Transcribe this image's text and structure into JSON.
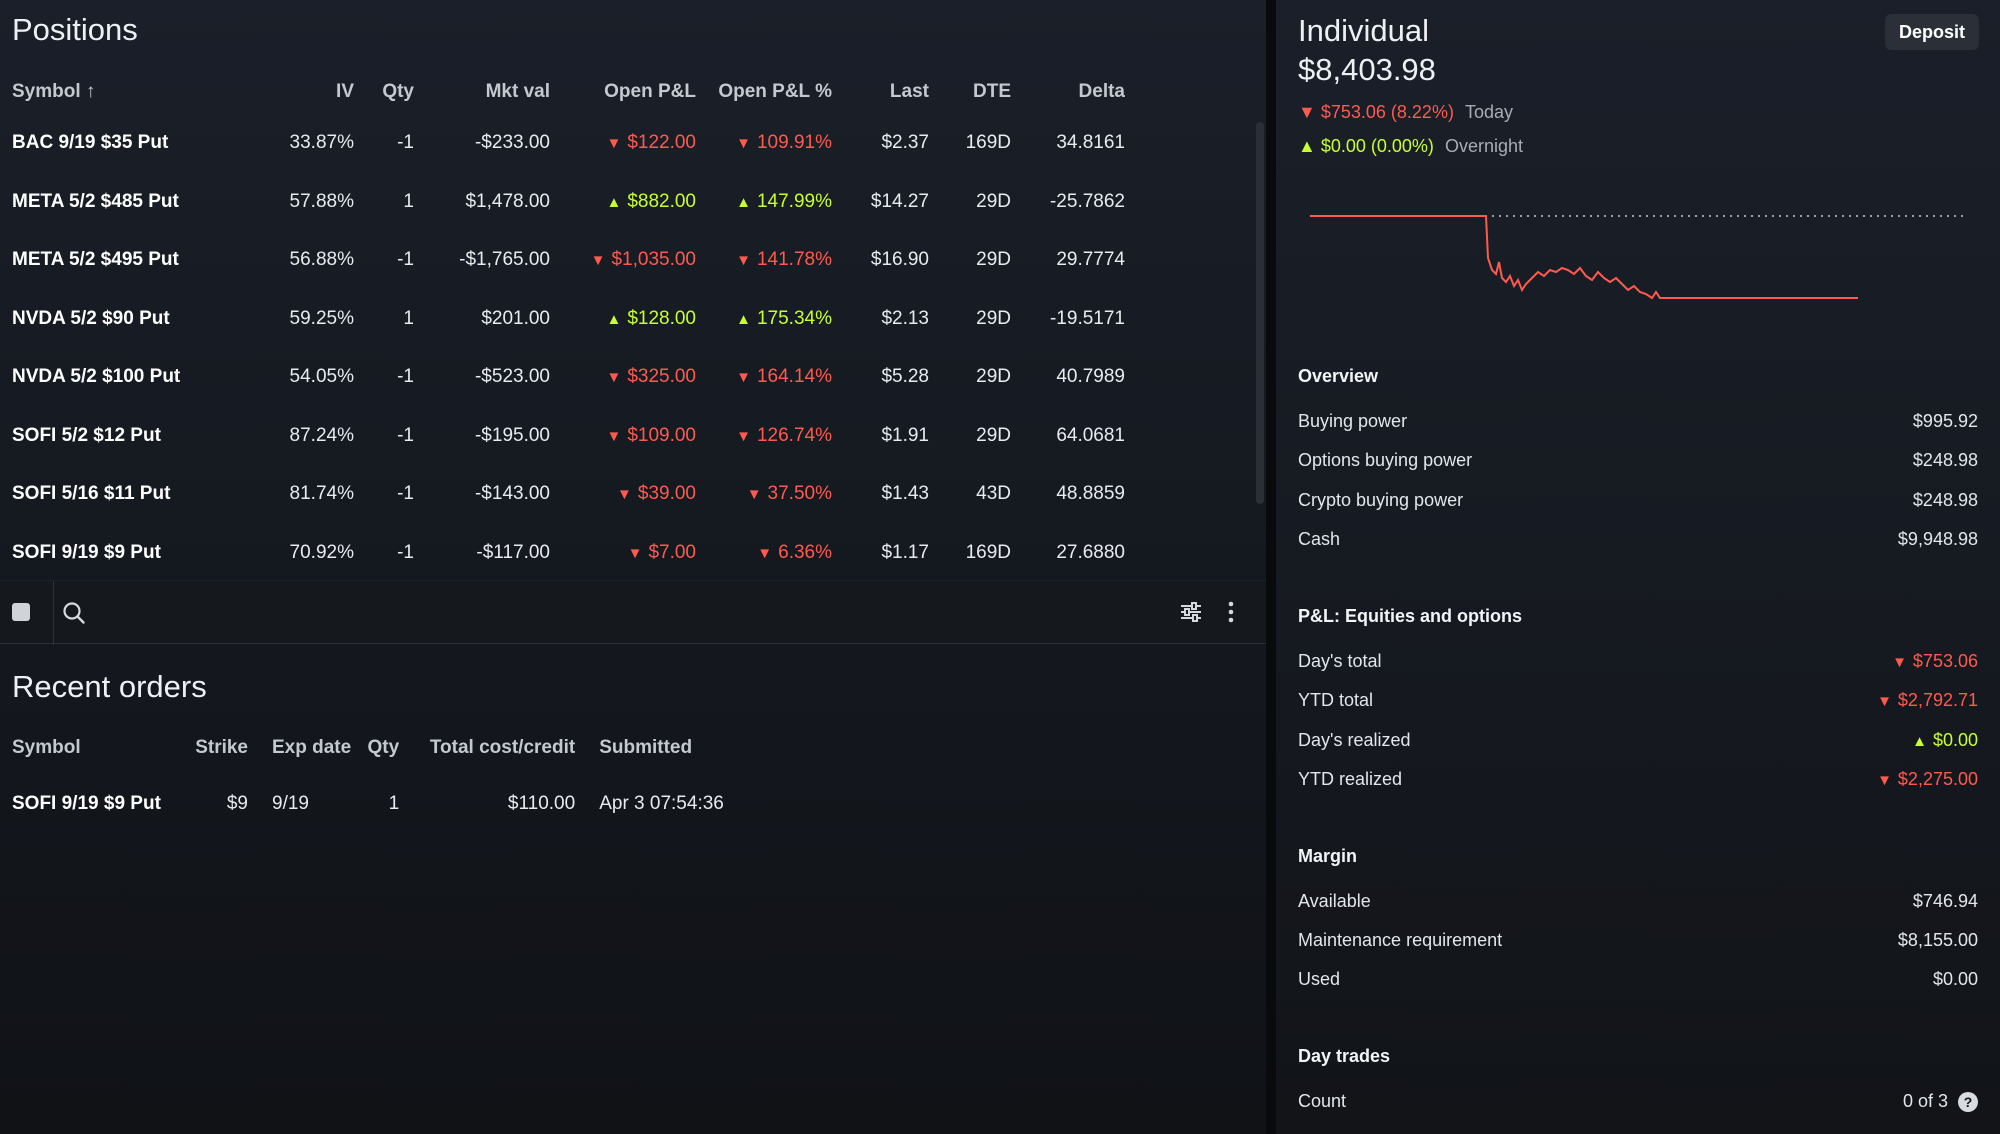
{
  "positions": {
    "title": "Positions",
    "columns": [
      "Symbol ↑",
      "IV",
      "Qty",
      "Mkt val",
      "Open P&L",
      "Open P&L %",
      "Last",
      "DTE",
      "Delta"
    ],
    "rows": [
      {
        "symbol": "BAC 9/19 $35 Put",
        "iv": "33.87%",
        "qty": "-1",
        "mkt_val": "-$233.00",
        "pnl": "$122.00",
        "pnl_pct": "109.91%",
        "dir": "down",
        "last": "$2.37",
        "dte": "169D",
        "delta": "34.8161"
      },
      {
        "symbol": "META 5/2 $485 Put",
        "iv": "57.88%",
        "qty": "1",
        "mkt_val": "$1,478.00",
        "pnl": "$882.00",
        "pnl_pct": "147.99%",
        "dir": "up",
        "last": "$14.27",
        "dte": "29D",
        "delta": "-25.7862"
      },
      {
        "symbol": "META 5/2 $495 Put",
        "iv": "56.88%",
        "qty": "-1",
        "mkt_val": "-$1,765.00",
        "pnl": "$1,035.00",
        "pnl_pct": "141.78%",
        "dir": "down",
        "last": "$16.90",
        "dte": "29D",
        "delta": "29.7774"
      },
      {
        "symbol": "NVDA 5/2 $90 Put",
        "iv": "59.25%",
        "qty": "1",
        "mkt_val": "$201.00",
        "pnl": "$128.00",
        "pnl_pct": "175.34%",
        "dir": "up",
        "last": "$2.13",
        "dte": "29D",
        "delta": "-19.5171"
      },
      {
        "symbol": "NVDA 5/2 $100 Put",
        "iv": "54.05%",
        "qty": "-1",
        "mkt_val": "-$523.00",
        "pnl": "$325.00",
        "pnl_pct": "164.14%",
        "dir": "down",
        "last": "$5.28",
        "dte": "29D",
        "delta": "40.7989"
      },
      {
        "symbol": "SOFI 5/2 $12 Put",
        "iv": "87.24%",
        "qty": "-1",
        "mkt_val": "-$195.00",
        "pnl": "$109.00",
        "pnl_pct": "126.74%",
        "dir": "down",
        "last": "$1.91",
        "dte": "29D",
        "delta": "64.0681"
      },
      {
        "symbol": "SOFI 5/16 $11 Put",
        "iv": "81.74%",
        "qty": "-1",
        "mkt_val": "-$143.00",
        "pnl": "$39.00",
        "pnl_pct": "37.50%",
        "dir": "down",
        "last": "$1.43",
        "dte": "43D",
        "delta": "48.8859"
      },
      {
        "symbol": "SOFI 9/19 $9 Put",
        "iv": "70.92%",
        "qty": "-1",
        "mkt_val": "-$117.00",
        "pnl": "$7.00",
        "pnl_pct": "6.36%",
        "dir": "down",
        "last": "$1.17",
        "dte": "169D",
        "delta": "27.6880"
      }
    ]
  },
  "toolbar": {
    "icons": [
      "checkbox",
      "search-icon",
      "filter-sliders-icon",
      "more-vertical-icon"
    ]
  },
  "orders": {
    "title": "Recent orders",
    "columns": [
      "Symbol",
      "Strike",
      "Exp date",
      "Qty",
      "Total cost/credit",
      "Submitted"
    ],
    "rows": [
      {
        "symbol": "SOFI 9/19 $9 Put",
        "strike": "$9",
        "exp": "9/19",
        "qty": "1",
        "cost": "$110.00",
        "submitted": "Apr 3 07:54:36"
      }
    ]
  },
  "account": {
    "name": "Individual",
    "value": "$8,403.98",
    "deposit_label": "Deposit",
    "today": {
      "value": "$753.06 (8.22%)",
      "label": "Today",
      "dir": "down"
    },
    "overnight": {
      "value": "$0.00 (0.00%)",
      "label": "Overnight",
      "dir": "up"
    },
    "overview": {
      "title": "Overview",
      "rows": [
        {
          "k": "Buying power",
          "v": "$995.92"
        },
        {
          "k": "Options buying power",
          "v": "$248.98"
        },
        {
          "k": "Crypto buying power",
          "v": "$248.98"
        },
        {
          "k": "Cash",
          "v": "$9,948.98"
        }
      ]
    },
    "pnl": {
      "title": "P&L: Equities and options",
      "rows": [
        {
          "k": "Day's total",
          "v": "$753.06",
          "dir": "down"
        },
        {
          "k": "YTD total",
          "v": "$2,792.71",
          "dir": "down"
        },
        {
          "k": "Day's realized",
          "v": "$0.00",
          "dir": "up"
        },
        {
          "k": "YTD realized",
          "v": "$2,275.00",
          "dir": "down"
        }
      ]
    },
    "margin": {
      "title": "Margin",
      "rows": [
        {
          "k": "Available",
          "v": "$746.94"
        },
        {
          "k": "Maintenance requirement",
          "v": "$8,155.00"
        },
        {
          "k": "Used",
          "v": "$0.00"
        }
      ]
    },
    "day_trades": {
      "title": "Day trades",
      "count_label": "Count",
      "count_value": "0 of 3",
      "help": "?"
    }
  },
  "colors": {
    "negative": "#ff5a4e",
    "positive": "#c8ff2e",
    "baseline": "#9aa0a8"
  }
}
